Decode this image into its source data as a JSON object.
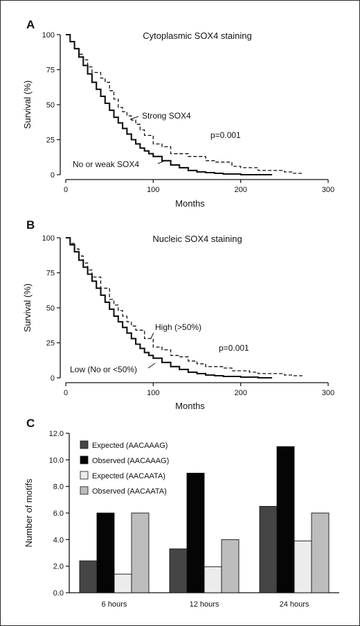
{
  "chart_data": [
    {
      "panel": "A",
      "type": "line",
      "title": "Cytoplasmic SOX4 staining",
      "xlabel": "Months",
      "ylabel": "Survival (%)",
      "xlim": [
        0,
        300
      ],
      "ylim": [
        0,
        100
      ],
      "xticks": [
        "0",
        "100",
        "200",
        "300"
      ],
      "yticks": [
        "0",
        "25",
        "50",
        "75",
        "100"
      ],
      "grid": false,
      "series": [
        {
          "name": "No or weak SOX4",
          "style": "solid",
          "x": [
            0,
            5,
            10,
            15,
            20,
            25,
            30,
            35,
            40,
            45,
            50,
            55,
            60,
            65,
            70,
            75,
            80,
            85,
            90,
            95,
            100,
            110,
            120,
            130,
            140,
            150,
            160,
            170,
            180,
            190,
            200,
            210,
            220,
            236
          ],
          "y": [
            100,
            95,
            90,
            84,
            78,
            72,
            66,
            61,
            56,
            51,
            46,
            41,
            37,
            33,
            29,
            25,
            22,
            19,
            17,
            15,
            13,
            10,
            7,
            5,
            3,
            2,
            1.5,
            1,
            0.5,
            0.5,
            0,
            0,
            0,
            0
          ]
        },
        {
          "name": "Strong SOX4",
          "style": "dashed",
          "x": [
            0,
            5,
            10,
            15,
            20,
            25,
            30,
            40,
            45,
            50,
            55,
            60,
            65,
            70,
            75,
            80,
            85,
            90,
            100,
            110,
            120,
            130,
            140,
            150,
            160,
            170,
            180,
            190,
            200,
            210,
            220,
            236,
            250,
            260,
            272
          ],
          "y": [
            100,
            95,
            90,
            86,
            82,
            77,
            73,
            69,
            66,
            60,
            54,
            48,
            45,
            42,
            39,
            36,
            32,
            28,
            22,
            20,
            15,
            15,
            13,
            13,
            10,
            9,
            9,
            6,
            5,
            5,
            3,
            3,
            2,
            1,
            1
          ]
        }
      ],
      "annotations": [
        "Strong SOX4",
        "No or weak SOX4",
        "p=0.001"
      ]
    },
    {
      "panel": "B",
      "type": "line",
      "title": "Nucleic SOX4 staining",
      "xlabel": "Months",
      "ylabel": "Survival (%)",
      "xlim": [
        0,
        300
      ],
      "ylim": [
        0,
        100
      ],
      "xticks": [
        "0",
        "100",
        "200",
        "300"
      ],
      "yticks": [
        "0",
        "25",
        "50",
        "75",
        "100"
      ],
      "grid": false,
      "series": [
        {
          "name": "Low (No or <50%)",
          "style": "solid",
          "x": [
            0,
            5,
            10,
            15,
            20,
            25,
            30,
            35,
            40,
            45,
            50,
            55,
            60,
            65,
            70,
            75,
            80,
            85,
            90,
            95,
            100,
            110,
            120,
            130,
            140,
            150,
            160,
            170,
            180,
            190,
            200,
            210,
            220,
            236
          ],
          "y": [
            100,
            95,
            90,
            84,
            79,
            74,
            69,
            64,
            59,
            54,
            49,
            44,
            40,
            36,
            32,
            28,
            24,
            21,
            18,
            16,
            14,
            11,
            8,
            6,
            4,
            3,
            2,
            1.5,
            1,
            1,
            0.5,
            0.5,
            0,
            0
          ]
        },
        {
          "name": "High (>50%)",
          "style": "dashed",
          "x": [
            0,
            5,
            10,
            15,
            20,
            25,
            30,
            40,
            50,
            55,
            60,
            65,
            70,
            75,
            80,
            90,
            100,
            110,
            120,
            130,
            140,
            150,
            160,
            170,
            180,
            190,
            200,
            210,
            220,
            236,
            250,
            260,
            272
          ],
          "y": [
            100,
            96,
            92,
            87,
            82,
            77,
            72,
            64,
            56,
            52,
            48,
            44,
            40,
            37,
            34,
            28,
            22,
            20,
            16,
            15,
            12,
            10,
            8,
            8,
            7,
            5,
            5,
            4,
            3,
            3,
            2,
            1.5,
            1
          ]
        }
      ],
      "annotations": [
        "High (>50%)",
        "Low (No or <50%)",
        "p=0.001"
      ]
    },
    {
      "panel": "C",
      "type": "bar",
      "title": "",
      "xlabel": "",
      "ylabel": "Number of motifs",
      "ylim": [
        0,
        12
      ],
      "yticks": [
        "0.0",
        "2.0",
        "4.0",
        "6.0",
        "8.0",
        "10.0",
        "12.0"
      ],
      "grid": false,
      "legend_placement": "top-left",
      "categories": [
        "6 hours",
        "12 hours",
        "24 hours"
      ],
      "series": [
        {
          "name": "Expected (AACAAAG)",
          "color": "#454545",
          "values": [
            2.4,
            3.3,
            6.5
          ]
        },
        {
          "name": "Observed (AACAAAG)",
          "color": "#050505",
          "values": [
            6.0,
            9.0,
            11.0
          ]
        },
        {
          "name": "Expected (AACAATA)",
          "color": "#ececec",
          "values": [
            1.4,
            1.95,
            3.9
          ]
        },
        {
          "name": "Observed (AACAATA)",
          "color": "#bdbdbd",
          "values": [
            6.0,
            4.0,
            6.0
          ]
        }
      ]
    }
  ]
}
